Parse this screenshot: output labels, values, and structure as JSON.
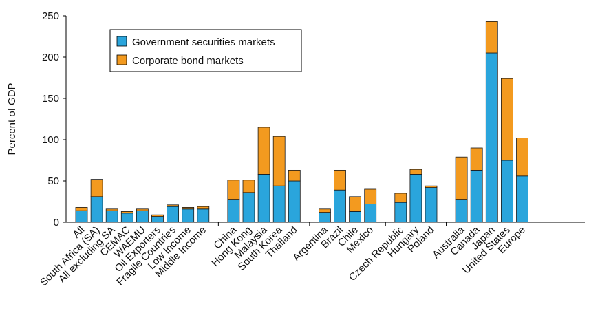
{
  "chart_data": {
    "type": "bar",
    "stacked": true,
    "ylabel": "Percent of GDP",
    "ylim": [
      0,
      250
    ],
    "yticks": [
      0,
      50,
      100,
      150,
      200,
      250
    ],
    "legend_position": "top-left",
    "groups": [
      [
        "All",
        "South Africa (SA)",
        "All excluding SA",
        "CEMAC",
        "WAEMU",
        "Oil Exporters",
        "Fragile Countries",
        "Low Income",
        "Middle Income"
      ],
      [
        "China",
        "Hong Kong",
        "Malaysia",
        "South Korea",
        "Thailand"
      ],
      [
        "Argentina",
        "Brazil",
        "Chile",
        "Mexico"
      ],
      [
        "Czech Republic",
        "Hungary",
        "Poland"
      ],
      [
        "Australia",
        "Canada",
        "Japan",
        "United States",
        "Europe"
      ]
    ],
    "categories": [
      "All",
      "South Africa (SA)",
      "All excluding SA",
      "CEMAC",
      "WAEMU",
      "Oil Exporters",
      "Fragile Countries",
      "Low Income",
      "Middle Income",
      "China",
      "Hong Kong",
      "Malaysia",
      "South Korea",
      "Thailand",
      "Argentina",
      "Brazil",
      "Chile",
      "Mexico",
      "Czech Republic",
      "Hungary",
      "Poland",
      "Australia",
      "Canada",
      "Japan",
      "United States",
      "Europe"
    ],
    "series": [
      {
        "name": "Government securities markets",
        "color": "#2aa5dc",
        "values": [
          14,
          31,
          14,
          11,
          14,
          7,
          19,
          16,
          16,
          27,
          36,
          58,
          44,
          50,
          12,
          39,
          13,
          22,
          24,
          58,
          42,
          27,
          63,
          205,
          75,
          56
        ]
      },
      {
        "name": "Corporate bond markets",
        "color": "#f39a1f",
        "values": [
          4,
          21,
          2,
          2,
          2,
          2,
          2,
          2,
          3,
          24,
          15,
          57,
          60,
          13,
          4,
          24,
          18,
          18,
          11,
          6,
          2,
          52,
          27,
          38,
          99,
          46
        ]
      }
    ]
  }
}
